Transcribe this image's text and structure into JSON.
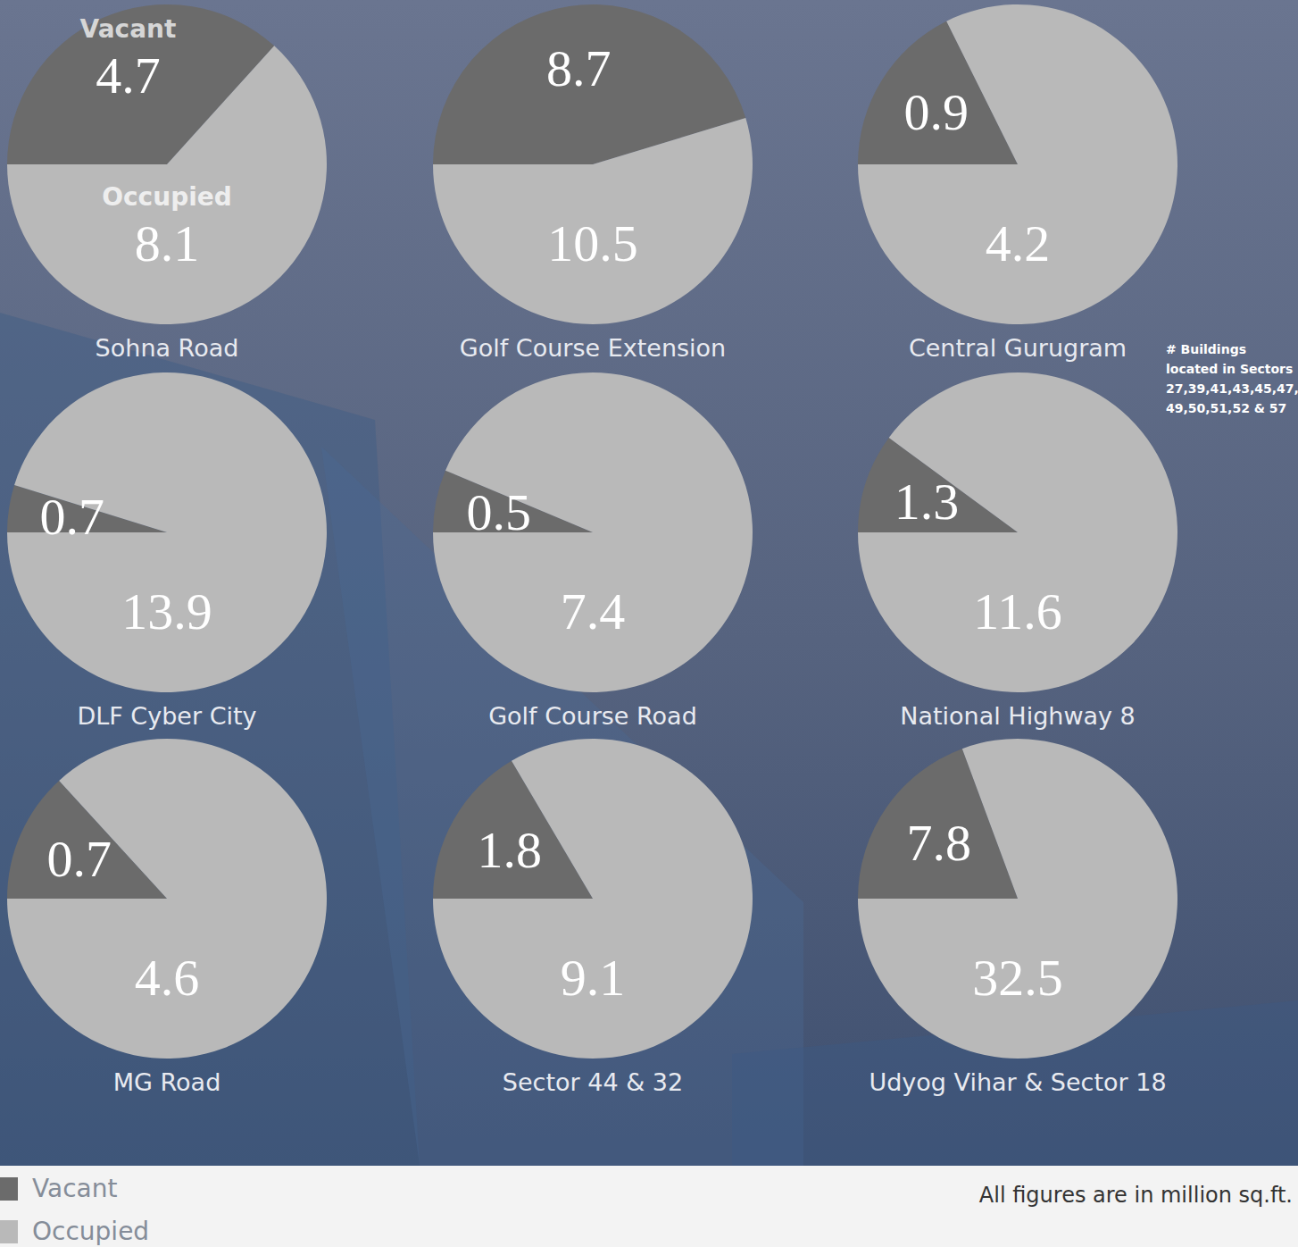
{
  "chart_data": {
    "type": "pie",
    "categories": [
      "Sohna Road",
      "Golf Course Extension",
      "Central Gurugram",
      "DLF Cyber City",
      "Golf Course Road",
      "National Highway 8",
      "MG Road",
      "Sector 44 & 32",
      "Udyog Vihar & Sector 18"
    ],
    "series": [
      {
        "name": "Vacant",
        "color": "#6b6b6b",
        "values": [
          4.7,
          8.7,
          0.9,
          0.7,
          0.5,
          1.3,
          0.7,
          1.8,
          7.8
        ]
      },
      {
        "name": "Occupied",
        "color": "#b9b9b9",
        "values": [
          8.1,
          10.5,
          4.2,
          13.9,
          7.4,
          11.6,
          4.6,
          9.1,
          32.5
        ]
      }
    ],
    "data_labels": true,
    "legend": "bottom-left",
    "annotations": [
      "All figures are in million sq.ft.",
      "# Buildings located in Sectors 27,39,41,43,45,47, 49,50,51,52 & 57"
    ]
  }
}
